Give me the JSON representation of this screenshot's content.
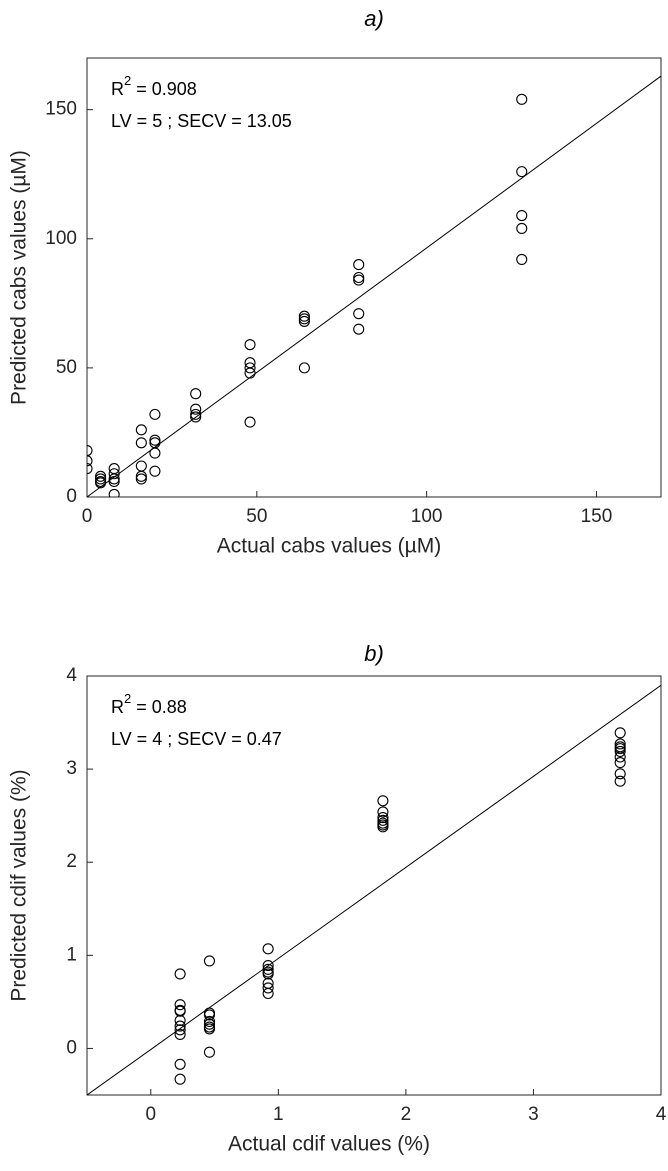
{
  "chart_data": [
    {
      "type": "scatter",
      "title": "a)",
      "x_label": "Actual cabs values (µM)",
      "y_label": "Predicted cabs values (µM)",
      "annotation": {
        "r": "R",
        "sup": "2",
        "r2": "= 0.908",
        "stats": "LV = 5 ; SECV = 13.05"
      },
      "x": [
        0,
        0,
        0,
        4,
        4,
        4,
        4,
        8,
        8,
        8,
        8,
        8,
        16,
        16,
        16,
        16,
        16,
        20,
        20,
        20,
        20,
        20,
        32,
        32,
        32,
        32,
        48,
        48,
        48,
        48,
        48,
        64,
        64,
        64,
        64,
        80,
        80,
        80,
        80,
        80,
        128,
        128,
        128,
        128,
        128
      ],
      "values": [
        18,
        14,
        11,
        8,
        7,
        6,
        5.5,
        11,
        9,
        7,
        6,
        1,
        26,
        21,
        12,
        8,
        7,
        32,
        22,
        21,
        17,
        10,
        40,
        34,
        32,
        31,
        59,
        52,
        50,
        48,
        29,
        70,
        69,
        68,
        50,
        90,
        85,
        84,
        71,
        65,
        154,
        126,
        109,
        104,
        92
      ],
      "color": "#000000",
      "line": {
        "x": [
          0,
          169
        ],
        "y": [
          0,
          163
        ]
      },
      "xlim": [
        0,
        169
      ],
      "ylim": [
        0,
        170
      ],
      "xticks": [
        0,
        50,
        100,
        150
      ],
      "yticks": [
        0,
        50,
        100,
        150
      ]
    },
    {
      "type": "scatter",
      "title": "b)",
      "x_label": "Actual cdif values (%)",
      "y_label": "Predicted cdif values (%)",
      "annotation": {
        "r": "R",
        "sup": "2",
        "r2": "= 0.88",
        "stats": "LV = 4 ; SECV = 0.47"
      },
      "x": [
        0.23,
        0.23,
        0.23,
        0.23,
        0.23,
        0.23,
        0.23,
        0.23,
        0.23,
        0.23,
        0.46,
        0.46,
        0.46,
        0.46,
        0.46,
        0.46,
        0.46,
        0.46,
        0.92,
        0.92,
        0.92,
        0.92,
        0.92,
        0.92,
        0.92,
        0.92,
        1.82,
        1.82,
        1.82,
        1.82,
        1.82,
        1.82,
        1.82,
        3.68,
        3.68,
        3.68,
        3.68,
        3.68,
        3.68,
        3.68,
        3.68,
        3.68
      ],
      "values": [
        0.8,
        0.47,
        0.41,
        0.4,
        0.3,
        0.24,
        0.2,
        0.15,
        -0.17,
        -0.33,
        0.94,
        0.38,
        0.36,
        0.29,
        0.26,
        0.23,
        0.21,
        -0.04,
        1.07,
        0.89,
        0.85,
        0.82,
        0.8,
        0.7,
        0.65,
        0.59,
        2.66,
        2.54,
        2.48,
        2.45,
        2.42,
        2.4,
        2.38,
        3.39,
        3.27,
        3.24,
        3.22,
        3.19,
        3.13,
        3.07,
        2.95,
        2.87
      ],
      "color": "#000000",
      "line": {
        "x": [
          -0.5,
          4
        ],
        "y": [
          -0.5,
          3.9
        ]
      },
      "xlim": [
        -0.5,
        4
      ],
      "ylim": [
        -0.5,
        4
      ],
      "xticks": [
        0,
        1,
        2,
        3,
        4
      ],
      "yticks": [
        0,
        1,
        2,
        3,
        4
      ]
    }
  ]
}
